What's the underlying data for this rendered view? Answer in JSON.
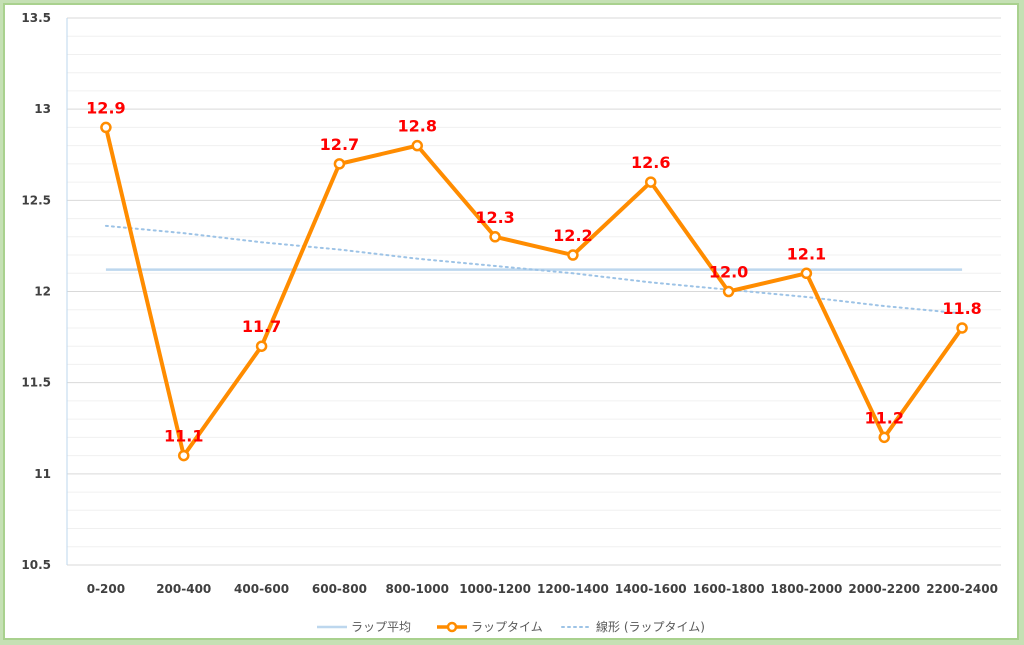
{
  "chart_data": {
    "type": "line",
    "categories": [
      "0-200",
      "200-400",
      "400-600",
      "600-800",
      "800-1000",
      "1000-1200",
      "1200-1400",
      "1400-1600",
      "1600-1800",
      "1800-2000",
      "2000-2200",
      "2200-2400"
    ],
    "series": [
      {
        "name": "ラップ平均",
        "values": [
          12.12,
          12.12,
          12.12,
          12.12,
          12.12,
          12.12,
          12.12,
          12.12,
          12.12,
          12.12,
          12.12,
          12.12
        ],
        "color": "#bdd7ee",
        "style": "solid"
      },
      {
        "name": "ラップタイム",
        "values": [
          12.9,
          11.1,
          11.7,
          12.7,
          12.8,
          12.3,
          12.2,
          12.6,
          12.0,
          12.1,
          11.2,
          11.8
        ],
        "color": "#ff8c00",
        "style": "solid-markers"
      },
      {
        "name": "線形 (ラップタイム)",
        "values": [
          12.36,
          12.32,
          12.27,
          12.23,
          12.18,
          12.14,
          12.1,
          12.05,
          12.01,
          11.97,
          11.92,
          11.88
        ],
        "color": "#9dc3e6",
        "style": "dotted"
      }
    ],
    "data_labels": [
      "12.9",
      "11.1",
      "11.7",
      "12.7",
      "12.8",
      "12.3",
      "12.2",
      "12.6",
      "12.0",
      "12.1",
      "11.2",
      "11.8"
    ],
    "y_ticks": [
      "10.5",
      "11",
      "11.5",
      "12",
      "12.5",
      "13",
      "13.5"
    ],
    "ylim": [
      10.5,
      13.5
    ],
    "grid": true,
    "legend_position": "bottom",
    "title": "",
    "xlabel": "",
    "ylabel": ""
  },
  "colors": {
    "border": "#a9d18e",
    "data_label": "#ff0000",
    "gridline": "#e6e6e6"
  }
}
